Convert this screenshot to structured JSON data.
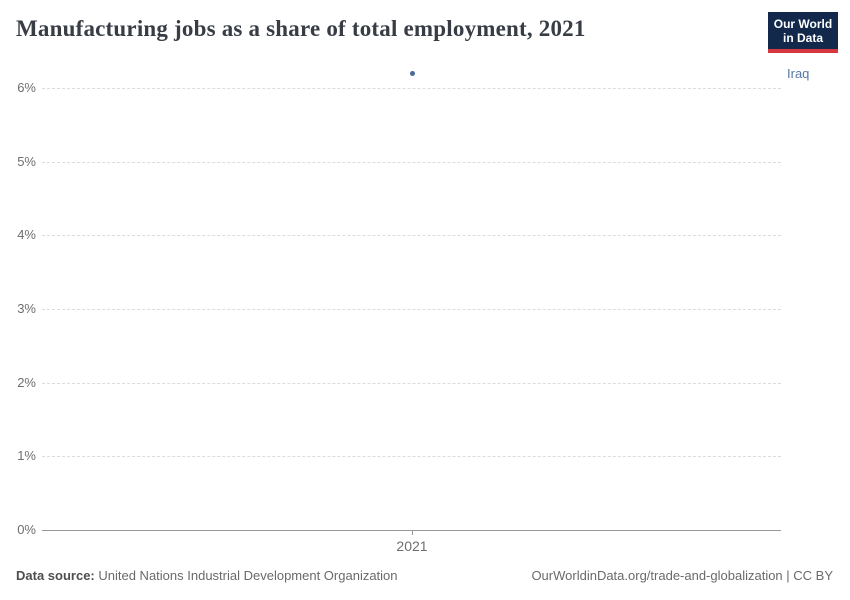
{
  "header": {
    "title": "Manufacturing jobs as a share of total employment, 2021",
    "logo": {
      "line1": "Our World",
      "line2": "in Data"
    }
  },
  "chart_data": {
    "type": "scatter",
    "title": "Manufacturing jobs as a share of total employment, 2021",
    "x": [
      2021
    ],
    "x_tick_labels": [
      "2021"
    ],
    "series": [
      {
        "name": "Iraq",
        "values": [
          6.2
        ],
        "color": "#4c6a9d"
      }
    ],
    "xlabel": "",
    "ylabel": "",
    "ylim": [
      0,
      6.5
    ],
    "yticks": [
      0,
      1,
      2,
      3,
      4,
      5,
      6
    ],
    "ytick_suffix": "%",
    "grid": "horizontal-dashed",
    "legend_position": "right-of-plot",
    "entity_label": "Iraq",
    "entity_label_color": "#5878a3"
  },
  "footer": {
    "source_label": "Data source:",
    "source_value": " United Nations Industrial Development Organization",
    "link": "OurWorldinData.org/trade-and-globalization | CC BY"
  },
  "colors": {
    "accent_navy": "#12294b",
    "accent_red": "#d7373f",
    "gridline": "#dcdcdc",
    "axis": "#999999",
    "tick_text": "#6e6e6e",
    "point": "#4c6a9d"
  }
}
